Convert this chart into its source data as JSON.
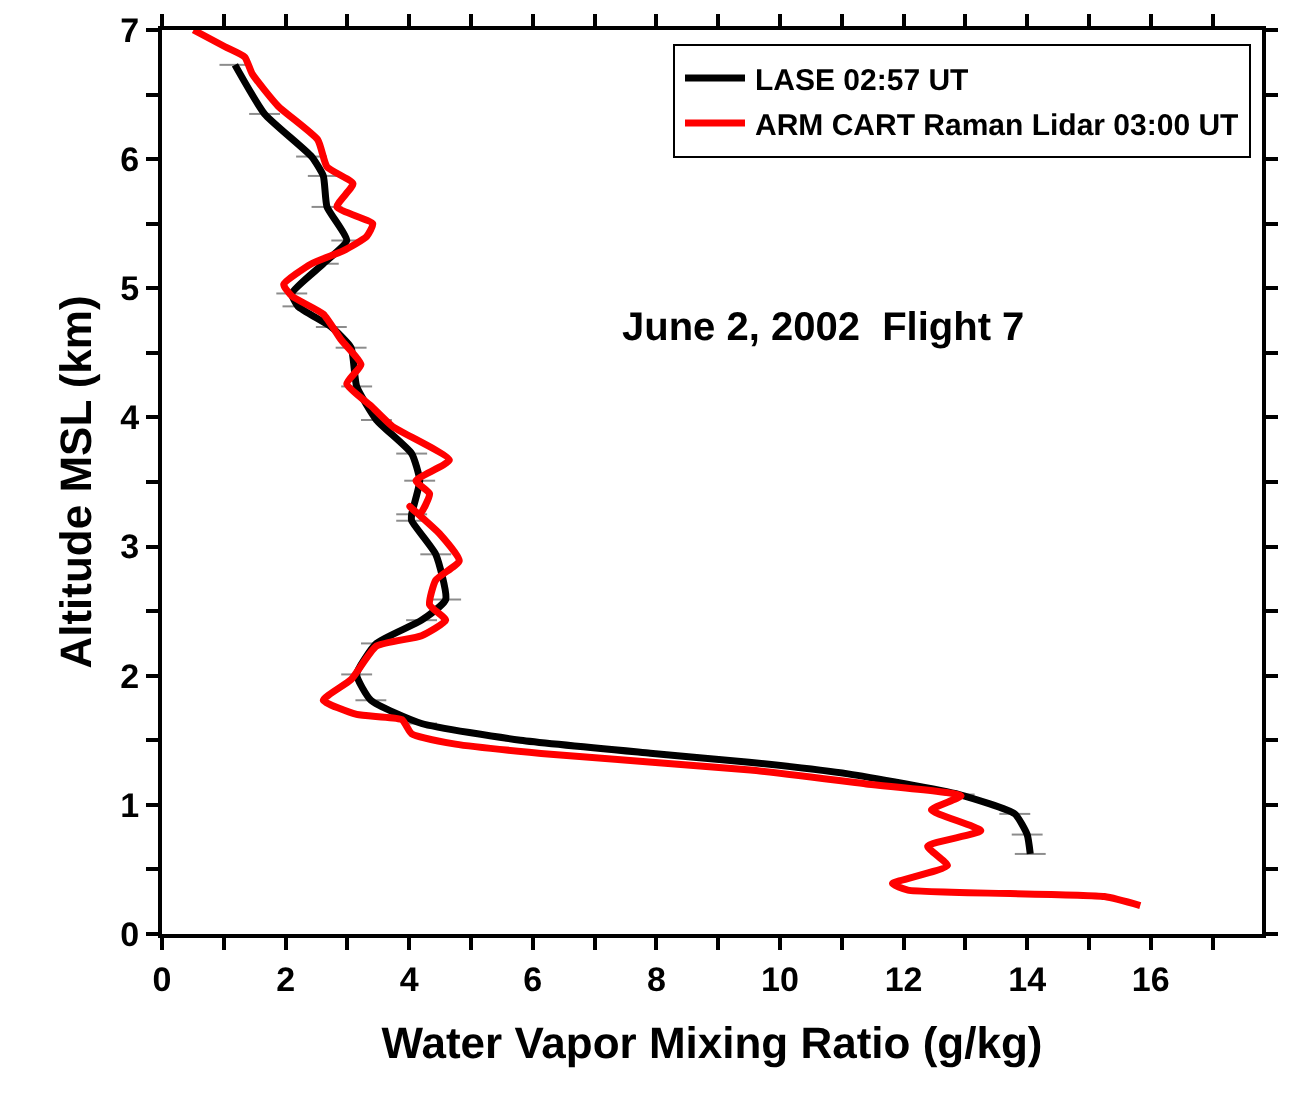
{
  "chart_data": {
    "type": "line",
    "xlabel": "Water Vapor Mixing Ratio (g/kg)",
    "ylabel": "Altitude MSL (km)",
    "annotations": [
      "June 2, 2002  Flight 7"
    ],
    "xlim": [
      0,
      17.8
    ],
    "ylim": [
      0,
      7
    ],
    "xticks": [
      0,
      {
        "value": 1,
        "label": null
      },
      2,
      {
        "value": 3,
        "label": null
      },
      4,
      {
        "value": 5,
        "label": null
      },
      6,
      {
        "value": 7,
        "label": null
      },
      8,
      {
        "value": 9,
        "label": null
      },
      10,
      {
        "value": 11,
        "label": null
      },
      12,
      {
        "value": 13,
        "label": null
      },
      14,
      {
        "value": 15,
        "label": null
      },
      16,
      {
        "value": 17,
        "label": null
      }
    ],
    "yticks": [
      0,
      {
        "value": 0.5,
        "label": null
      },
      1,
      {
        "value": 1.5,
        "label": null
      },
      2,
      {
        "value": 2.5,
        "label": null
      },
      3,
      {
        "value": 3.5,
        "label": null
      },
      4,
      {
        "value": 4.5,
        "label": null
      },
      5,
      {
        "value": 5.5,
        "label": null
      },
      6,
      {
        "value": 6.5,
        "label": null
      },
      7
    ],
    "legend": "top right",
    "marker": "none",
    "line_style": "solid",
    "series": [
      {
        "name": "LASE 02:57 UT",
        "color": "#000000",
        "x": [
          1.18,
          1.66,
          2.42,
          2.61,
          2.67,
          2.99,
          2.61,
          2.1,
          2.2,
          2.74,
          3.06,
          3.15,
          3.47,
          4.04,
          4.17,
          4.04,
          4.04,
          4.43,
          4.59,
          4.2,
          3.47,
          3.15,
          3.38,
          4.2,
          5.8,
          7.9,
          9.5,
          11.1,
          12.9,
          13.8,
          14.0,
          14.05
        ],
        "values": [
          6.73,
          6.35,
          6.02,
          5.87,
          5.63,
          5.37,
          5.19,
          4.96,
          4.86,
          4.7,
          4.54,
          4.24,
          3.98,
          3.72,
          3.51,
          3.25,
          3.2,
          2.94,
          2.59,
          2.43,
          2.25,
          2.01,
          1.81,
          1.63,
          1.5,
          1.4,
          1.33,
          1.24,
          1.08,
          0.93,
          0.77,
          0.62
        ],
        "xerrors": [
          0.25,
          0.25,
          0.25,
          0.25,
          0.25,
          0.25,
          0.25,
          0.25,
          0.25,
          0.25,
          0.25,
          0.25,
          0.25,
          0.25,
          0.25,
          0.25,
          0.25,
          0.25,
          0.25,
          0.25,
          0.25,
          0.25,
          0.25,
          0.25,
          0.25,
          0.25,
          0.25,
          0.25,
          0.25,
          0.25,
          0.25,
          0.25
        ]
      },
      {
        "name": "ARM CART Raman Lidar 03:00 UT",
        "color": "#ff0000",
        "x": [
          0.51,
          1.02,
          1.34,
          1.46,
          1.88,
          2.52,
          2.67,
          3.09,
          2.83,
          3.41,
          3.31,
          2.93,
          2.42,
          1.97,
          2.1,
          2.61,
          2.9,
          3.22,
          2.99,
          3.38,
          3.73,
          4.65,
          4.11,
          4.33,
          4.17,
          4.01,
          4.49,
          4.81,
          4.43,
          4.33,
          4.59,
          4.2,
          3.47,
          3.06,
          2.61,
          3.15,
          3.88,
          4.04,
          4.75,
          6.34,
          9.52,
          11.43,
          12.93,
          12.45,
          13.25,
          12.39,
          12.71,
          11.82,
          12.07,
          15.25,
          15.83
        ],
        "values": [
          7.0,
          6.87,
          6.79,
          6.66,
          6.41,
          6.15,
          5.94,
          5.81,
          5.63,
          5.5,
          5.4,
          5.29,
          5.19,
          5.03,
          4.94,
          4.8,
          4.6,
          4.41,
          4.26,
          4.09,
          3.93,
          3.67,
          3.51,
          3.41,
          3.25,
          3.31,
          3.1,
          2.89,
          2.74,
          2.55,
          2.43,
          2.31,
          2.23,
          1.97,
          1.81,
          1.7,
          1.66,
          1.55,
          1.47,
          1.39,
          1.27,
          1.16,
          1.07,
          0.96,
          0.8,
          0.68,
          0.53,
          0.39,
          0.34,
          0.29,
          0.22
        ]
      }
    ]
  }
}
